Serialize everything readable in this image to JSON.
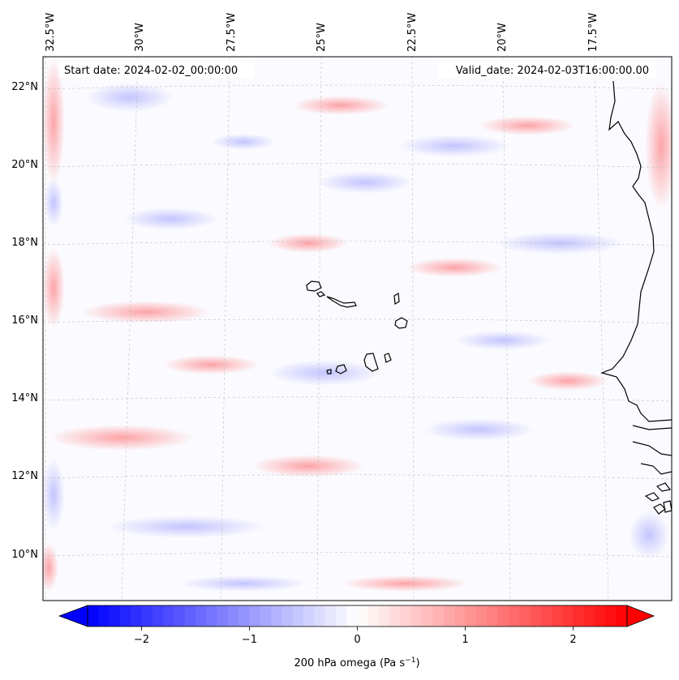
{
  "map": {
    "start_date_label": "Start date: 2024-02-02_00:00:00",
    "valid_date_label": "Valid_date: 2024-02-03T16:00:00.00",
    "longitude_labels": [
      "32.5°W",
      "30°W",
      "27.5°W",
      "25°W",
      "22.5°W",
      "20°W",
      "17.5°W"
    ],
    "latitude_labels": [
      "22°N",
      "20°N",
      "18°N",
      "16°N",
      "14°N",
      "12°N",
      "10°N"
    ],
    "field": "omega",
    "colors": {
      "negative": "#0000ff",
      "zero": "#ffffff",
      "positive": "#ff0000",
      "coastline": "#000000",
      "grid": "#bfbfbf"
    }
  },
  "colorbar": {
    "ticks": [
      -2,
      -1,
      0,
      1,
      2
    ],
    "tick_labels": [
      "−2",
      "−1",
      "0",
      "1",
      "2"
    ],
    "range": [
      -2.5,
      2.5
    ],
    "extend": "both",
    "label_prefix": "200 hPa omega (Pa s",
    "label_exp": "−1",
    "label_suffix": ")"
  }
}
